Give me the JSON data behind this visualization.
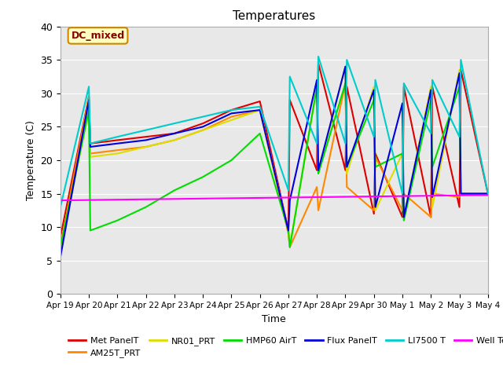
{
  "title": "Temperatures",
  "xlabel": "Time",
  "ylabel": "Temperature (C)",
  "ylim": [
    0,
    40
  ],
  "annotation": "DC_mixed",
  "bg_color": "#e8e8e8",
  "x_tick_labels": [
    "Apr 19",
    "Apr 20",
    "Apr 21",
    "Apr 22",
    "Apr 23",
    "Apr 24",
    "Apr 25",
    "Apr 26",
    "Apr 27",
    "Apr 28",
    "Apr 29",
    "Apr 30",
    "May 1",
    "May 2",
    "May 3",
    "May 4"
  ],
  "series": {
    "Met PanelT": {
      "color": "#dd0000",
      "lw": 1.5,
      "x": [
        0,
        1,
        1.05,
        2,
        3,
        4,
        5,
        6,
        7,
        8,
        8.05,
        9,
        9.05,
        10,
        10.05,
        11,
        11.05,
        12,
        12.05,
        13,
        13.05,
        14,
        14.05,
        15
      ],
      "y": [
        8.5,
        29.5,
        22.5,
        23.0,
        23.5,
        24.0,
        25.5,
        27.5,
        28.8,
        9.5,
        29.0,
        18.5,
        34.5,
        18.5,
        31.0,
        12.0,
        21.0,
        11.5,
        31.0,
        11.5,
        31.0,
        13.0,
        33.5,
        15.0
      ]
    },
    "AM25T_PRT": {
      "color": "#ff8800",
      "lw": 1.5,
      "x": [
        0,
        1,
        1.05,
        2,
        3,
        4,
        5,
        6,
        7,
        8,
        8.05,
        9,
        9.05,
        10,
        10.05,
        11,
        11.05,
        12,
        12.05,
        13,
        13.05,
        14,
        14.05,
        15
      ],
      "y": [
        7.0,
        29.5,
        21.0,
        21.5,
        22.0,
        23.0,
        24.5,
        26.5,
        27.5,
        9.0,
        7.0,
        16.0,
        12.5,
        31.5,
        16.0,
        12.5,
        20.5,
        12.5,
        15.0,
        11.5,
        15.0,
        14.5,
        15.0,
        15.0
      ]
    },
    "NR01_PRT": {
      "color": "#dddd00",
      "lw": 1.5,
      "x": [
        0,
        1,
        1.05,
        2,
        3,
        4,
        5,
        6,
        7,
        8,
        8.05,
        9,
        9.05,
        10,
        10.05,
        11,
        11.05,
        12,
        12.05,
        13,
        13.05,
        14,
        14.05,
        15
      ],
      "y": [
        6.5,
        27.5,
        20.5,
        21.0,
        22.0,
        23.0,
        24.5,
        26.0,
        27.5,
        9.5,
        7.0,
        31.0,
        18.0,
        34.0,
        18.0,
        31.0,
        12.5,
        21.0,
        11.5,
        31.0,
        13.0,
        33.5,
        15.0,
        15.0
      ]
    },
    "HMP60 AirT": {
      "color": "#00dd00",
      "lw": 1.5,
      "x": [
        0,
        1,
        1.05,
        2,
        3,
        4,
        5,
        6,
        7,
        8,
        8.05,
        9,
        9.05,
        10,
        10.05,
        11,
        11.05,
        12,
        12.05,
        13,
        13.05,
        14,
        14.05,
        15
      ],
      "y": [
        7.0,
        27.5,
        9.5,
        11.0,
        13.0,
        15.5,
        17.5,
        20.0,
        24.0,
        9.5,
        7.0,
        31.0,
        18.0,
        31.5,
        19.0,
        29.0,
        19.0,
        21.0,
        11.0,
        29.0,
        19.0,
        31.0,
        15.0,
        15.0
      ]
    },
    "Flux PanelT": {
      "color": "#0000dd",
      "lw": 1.5,
      "x": [
        0,
        1,
        1.05,
        2,
        3,
        4,
        5,
        6,
        7,
        8,
        8.05,
        9,
        9.05,
        10,
        10.05,
        11,
        11.05,
        12,
        12.05,
        13,
        13.05,
        14,
        14.05,
        15
      ],
      "y": [
        5.5,
        29.0,
        22.0,
        22.5,
        23.0,
        24.0,
        25.0,
        27.0,
        27.5,
        9.5,
        14.0,
        32.0,
        18.5,
        34.0,
        19.0,
        30.5,
        13.0,
        28.5,
        11.5,
        30.5,
        14.5,
        33.0,
        15.0,
        15.0
      ]
    },
    "LI7500 T": {
      "color": "#00cccc",
      "lw": 1.5,
      "x": [
        0,
        1,
        1.05,
        2,
        3,
        4,
        5,
        6,
        7,
        8,
        8.05,
        9,
        9.05,
        10,
        10.05,
        11,
        11.05,
        12,
        12.05,
        13,
        13.05,
        14,
        14.05,
        15
      ],
      "y": [
        13.0,
        31.0,
        22.5,
        23.5,
        24.5,
        25.5,
        26.5,
        27.5,
        28.0,
        15.5,
        32.5,
        22.5,
        35.5,
        22.5,
        35.0,
        23.5,
        32.0,
        15.0,
        31.5,
        24.0,
        32.0,
        23.5,
        35.0,
        15.0
      ]
    },
    "Well Temp": {
      "color": "#ff00ff",
      "lw": 1.5,
      "x": [
        0,
        15
      ],
      "y": [
        14.0,
        14.8
      ]
    }
  }
}
